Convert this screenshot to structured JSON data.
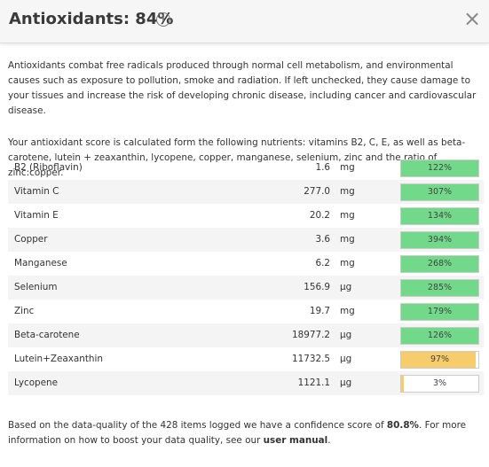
{
  "header": {
    "title": "Antioxidants: 84%",
    "info_icon": "i",
    "close": "×"
  },
  "description": {
    "paragraphs": [
      "Antioxidants combat free radicals produced through normal cell metabolism, and environmental causes such as exposure to pollution, smoke and radiation. If left unchecked, they cause damage to your tissues and increase the risk of developing chronic disease, including cancer and cardiovascular disease.",
      "Your antioxidant score is calculated form the following nutrients: vitamins B2, C, E, as well as beta-carotene, lutein + zeaxanthin, lycopene, copper, manganese, selenium, zinc and the ratio of zinc:copper."
    ]
  },
  "table": {
    "rows": [
      {
        "name": "B2 (Riboflavin)",
        "amount": "1.6",
        "unit": "mg",
        "percent": {
          "value": 122,
          "label": "122%"
        },
        "color": "#72d98b"
      },
      {
        "name": "Vitamin C",
        "amount": "277.0",
        "unit": "mg",
        "percent": {
          "value": 307,
          "label": "307%"
        },
        "color": "#72d98b"
      },
      {
        "name": "Vitamin E",
        "amount": "20.2",
        "unit": "mg",
        "percent": {
          "value": 134,
          "label": "134%"
        },
        "color": "#72d98b"
      },
      {
        "name": "Copper",
        "amount": "3.6",
        "unit": "mg",
        "percent": {
          "value": 394,
          "label": "394%"
        },
        "color": "#72d98b"
      },
      {
        "name": "Manganese",
        "amount": "6.2",
        "unit": "mg",
        "percent": {
          "value": 268,
          "label": "268%"
        },
        "color": "#72d98b"
      },
      {
        "name": "Selenium",
        "amount": "156.9",
        "unit": "µg",
        "percent": {
          "value": 285,
          "label": "285%"
        },
        "color": "#72d98b"
      },
      {
        "name": "Zinc",
        "amount": "19.7",
        "unit": "mg",
        "percent": {
          "value": 179,
          "label": "179%"
        },
        "color": "#72d98b"
      },
      {
        "name": "Beta-carotene",
        "amount": "18977.2",
        "unit": "µg",
        "percent": {
          "value": 126,
          "label": "126%"
        },
        "color": "#72d98b"
      },
      {
        "name": "Lutein+Zeaxanthin",
        "amount": "11732.5",
        "unit": "µg",
        "percent": {
          "value": 97,
          "label": "97%"
        },
        "color": "#f7cd6b"
      },
      {
        "name": "Lycopene",
        "amount": "1121.1",
        "unit": "µg",
        "percent": {
          "value": 3,
          "label": "3%"
        },
        "color": "#f7cd6b"
      }
    ]
  },
  "footer": {
    "text_before": "Based on the data-quality of the 428 items logged we have a confidence score of ",
    "score": "80.8%",
    "text_middle": ". For more information on how to boost your data quality, see our ",
    "link": "user manual",
    "text_after": "."
  }
}
